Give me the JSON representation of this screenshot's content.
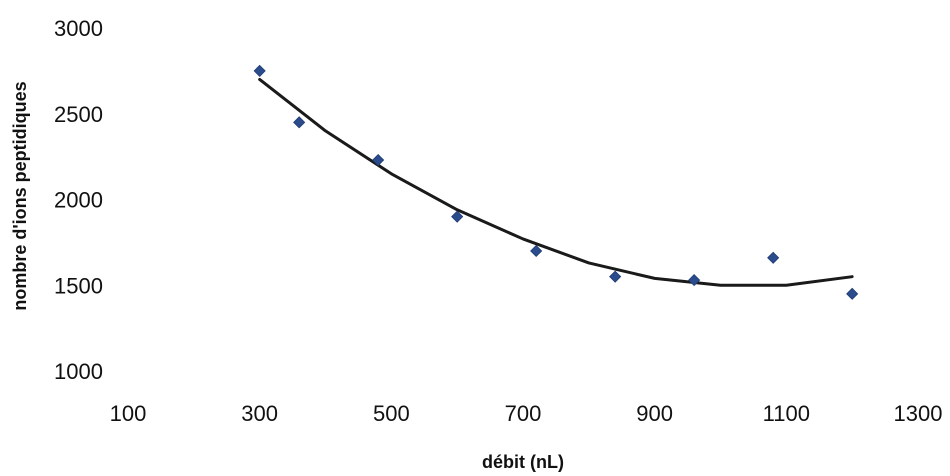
{
  "chart_data": {
    "type": "scatter",
    "xlabel": "débit (nL)",
    "ylabel": "nombre d'ions peptidiques",
    "xlim": [
      100,
      1300
    ],
    "ylim": [
      1000,
      3000
    ],
    "x_ticks": [
      100,
      300,
      500,
      700,
      900,
      1100,
      1300
    ],
    "y_ticks": [
      1000,
      1500,
      2000,
      2500,
      3000
    ],
    "grid": false,
    "legend": "none",
    "series": [
      {
        "type": "scatter",
        "marker": "diamond",
        "color": "#2b4c8c",
        "points": [
          {
            "x": 300,
            "y": 2750
          },
          {
            "x": 360,
            "y": 2450
          },
          {
            "x": 480,
            "y": 2230
          },
          {
            "x": 600,
            "y": 1900
          },
          {
            "x": 720,
            "y": 1700
          },
          {
            "x": 840,
            "y": 1550
          },
          {
            "x": 960,
            "y": 1530
          },
          {
            "x": 1080,
            "y": 1660
          },
          {
            "x": 1200,
            "y": 1450
          }
        ]
      },
      {
        "type": "line",
        "color": "#1a1a1a",
        "points": [
          {
            "x": 300,
            "y": 2700
          },
          {
            "x": 400,
            "y": 2400
          },
          {
            "x": 500,
            "y": 2150
          },
          {
            "x": 600,
            "y": 1940
          },
          {
            "x": 700,
            "y": 1770
          },
          {
            "x": 800,
            "y": 1630
          },
          {
            "x": 900,
            "y": 1540
          },
          {
            "x": 1000,
            "y": 1500
          },
          {
            "x": 1100,
            "y": 1500
          },
          {
            "x": 1200,
            "y": 1550
          }
        ]
      }
    ]
  }
}
